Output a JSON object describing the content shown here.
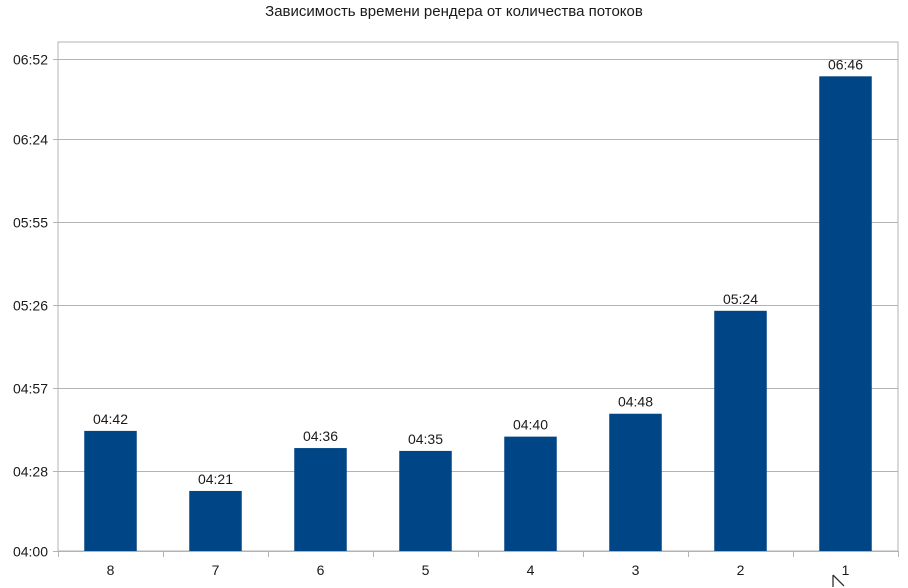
{
  "chart_data": {
    "type": "bar",
    "title": "Зависимость времени рендера от количества потоков",
    "xlabel": "",
    "ylabel": "",
    "categories": [
      "8",
      "7",
      "6",
      "5",
      "4",
      "3",
      "2",
      "1"
    ],
    "values": [
      282,
      261,
      276,
      275,
      280,
      288,
      324,
      406
    ],
    "data_labels": [
      "04:42",
      "04:21",
      "04:36",
      "04:35",
      "04:40",
      "04:48",
      "05:24",
      "06:46"
    ],
    "ylim": [
      240,
      418
    ],
    "y_ticks": [
      240,
      268,
      297,
      326,
      355,
      384,
      412
    ],
    "y_tick_labels": [
      "04:00",
      "04:28",
      "04:57",
      "05:26",
      "05:55",
      "06:24",
      "06:52"
    ],
    "grid": true,
    "legend": "none",
    "bar_color": "#004586",
    "grid_color": "#b3b3b3"
  }
}
